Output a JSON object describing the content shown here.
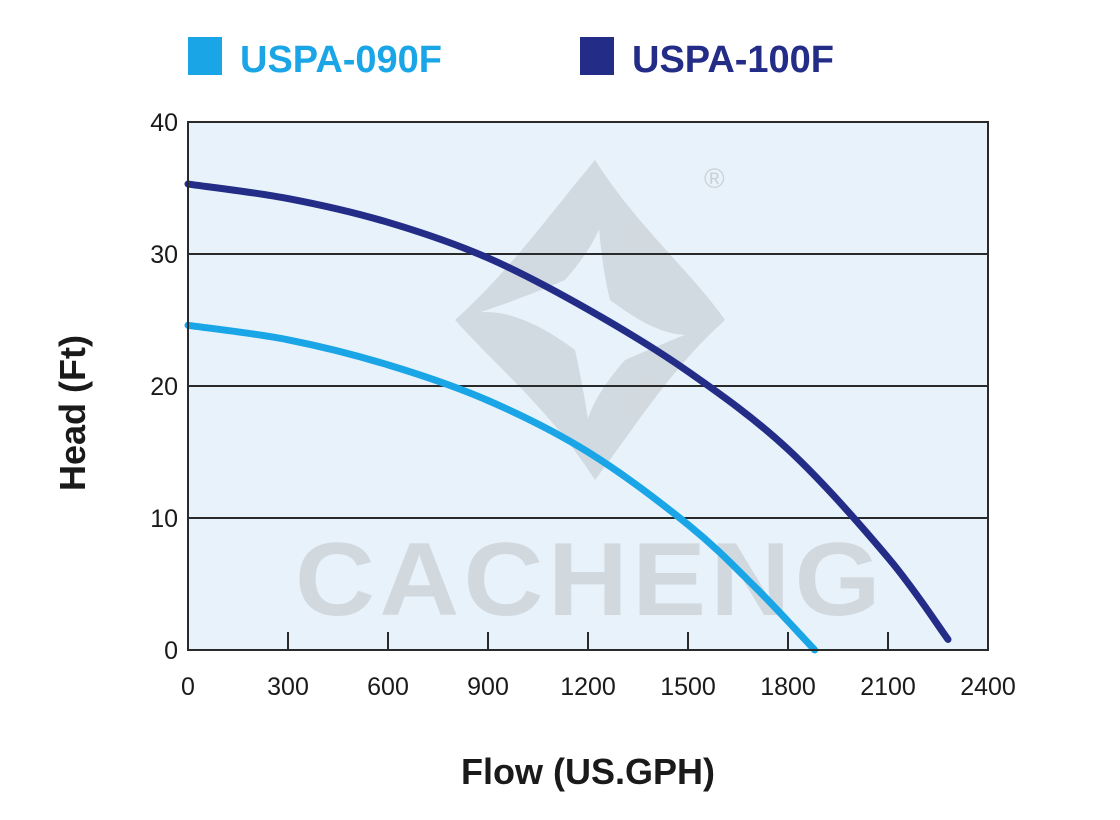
{
  "legend": [
    {
      "name": "USPA-090F",
      "color": "#1aa6e6"
    },
    {
      "name": "USPA-100F",
      "color": "#232c86"
    }
  ],
  "watermark": {
    "text": "CACHENG",
    "mark": "®"
  },
  "chart_data": {
    "type": "line",
    "xlabel": "Flow (US.GPH)",
    "ylabel": "Head (Ft)",
    "xlim": [
      0,
      2400
    ],
    "ylim": [
      0,
      40
    ],
    "xticks": [
      0,
      300,
      600,
      900,
      1200,
      1500,
      1800,
      2100,
      2400
    ],
    "yticks": [
      0,
      10,
      20,
      30,
      40
    ],
    "grid": {
      "horizontal": true,
      "vertical": false
    },
    "legend_position": "top",
    "plot_background": "#e8f2fb",
    "series": [
      {
        "name": "USPA-090F",
        "color": "#1aa6e6",
        "x": [
          0,
          300,
          600,
          900,
          1200,
          1500,
          1700,
          1880
        ],
        "y": [
          24.6,
          23.5,
          21.6,
          18.9,
          15.0,
          9.5,
          4.8,
          0
        ]
      },
      {
        "name": "USPA-100F",
        "color": "#232c86",
        "x": [
          0,
          300,
          600,
          900,
          1200,
          1500,
          1800,
          2100,
          2280
        ],
        "y": [
          35.3,
          34.2,
          32.4,
          29.7,
          25.8,
          21.1,
          15.2,
          7.0,
          0.8
        ]
      }
    ]
  }
}
